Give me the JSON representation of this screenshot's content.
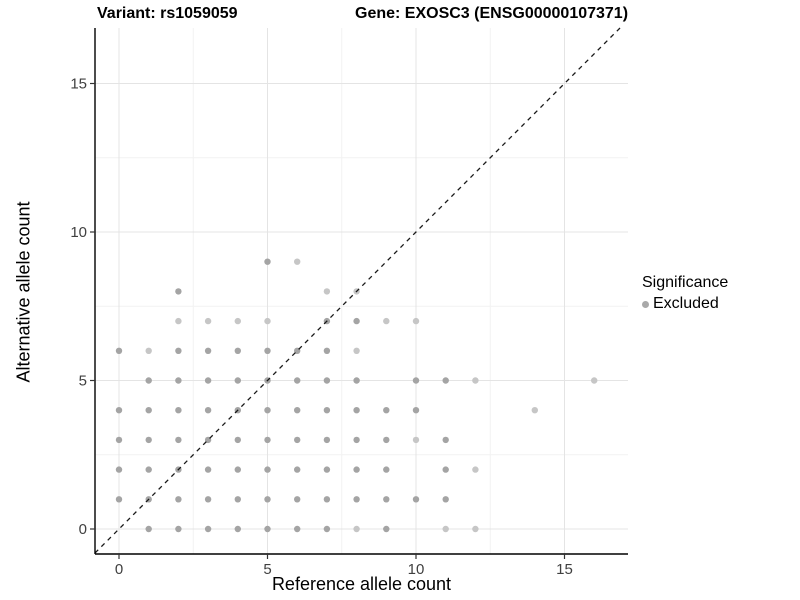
{
  "titles": {
    "variant": "Variant: rs1059059",
    "gene": "Gene: EXOSC3 (ENSG00000107371)"
  },
  "axes": {
    "x_label": "Reference allele count",
    "y_label": "Alternative allele count",
    "x_ticks": [
      "0",
      "5",
      "10",
      "15"
    ],
    "y_ticks": [
      "0",
      "5",
      "10",
      "15"
    ],
    "x_tick_values": [
      0,
      5,
      10,
      15
    ],
    "y_tick_values": [
      0,
      5,
      10,
      15
    ],
    "x_minor_values": [
      2.5,
      7.5,
      12.5
    ],
    "y_minor_values": [
      2.5,
      7.5,
      12.5
    ]
  },
  "legend": {
    "title": "Significance",
    "items": [
      {
        "label": "Excluded",
        "color": "#a9a9a9"
      }
    ]
  },
  "colors": {
    "grid_major": "#e4e4e4",
    "grid_minor": "#f2f2f2",
    "axis_line": "#000000",
    "tick_mark": "#333333",
    "tick_label": "#404040",
    "identity_line": "#1a1a1a",
    "dot_shades": {
      "m": "#a4a4a4",
      "l": "#c6c6c6"
    }
  },
  "chart_data": {
    "type": "scatter",
    "title": "Variant: rs1059059 — Gene: EXOSC3 (ENSG00000107371)",
    "xlabel": "Reference allele count",
    "ylabel": "Alternative allele count",
    "xlim": [
      -0.81,
      17.14
    ],
    "ylim": [
      -0.88,
      16.87
    ],
    "grid": "major+minor",
    "legend_position": "right",
    "identity_line": {
      "show": true,
      "style": "dashed",
      "slope": 1,
      "intercept": 0
    },
    "series_name": "Excluded",
    "point_note": "each point = [ref_allele_count, alt_allele_count, shade] ; shade m=overlapping/medium, l=light/single",
    "points": [
      [
        1,
        0,
        "m"
      ],
      [
        2,
        0,
        "m"
      ],
      [
        3,
        0,
        "m"
      ],
      [
        4,
        0,
        "m"
      ],
      [
        5,
        0,
        "m"
      ],
      [
        6,
        0,
        "m"
      ],
      [
        7,
        0,
        "m"
      ],
      [
        8,
        0,
        "l"
      ],
      [
        9,
        0,
        "m"
      ],
      [
        11,
        0,
        "l"
      ],
      [
        12,
        0,
        "l"
      ],
      [
        0,
        1,
        "m"
      ],
      [
        1,
        1,
        "m"
      ],
      [
        2,
        1,
        "m"
      ],
      [
        3,
        1,
        "m"
      ],
      [
        4,
        1,
        "m"
      ],
      [
        5,
        1,
        "m"
      ],
      [
        6,
        1,
        "m"
      ],
      [
        7,
        1,
        "m"
      ],
      [
        8,
        1,
        "m"
      ],
      [
        9,
        1,
        "m"
      ],
      [
        10,
        1,
        "m"
      ],
      [
        11,
        1,
        "m"
      ],
      [
        0,
        2,
        "m"
      ],
      [
        1,
        2,
        "m"
      ],
      [
        2,
        2,
        "m"
      ],
      [
        3,
        2,
        "m"
      ],
      [
        4,
        2,
        "m"
      ],
      [
        5,
        2,
        "m"
      ],
      [
        6,
        2,
        "m"
      ],
      [
        7,
        2,
        "m"
      ],
      [
        8,
        2,
        "m"
      ],
      [
        9,
        2,
        "m"
      ],
      [
        11,
        2,
        "m"
      ],
      [
        12,
        2,
        "l"
      ],
      [
        0,
        3,
        "m"
      ],
      [
        1,
        3,
        "m"
      ],
      [
        2,
        3,
        "m"
      ],
      [
        3,
        3,
        "m"
      ],
      [
        4,
        3,
        "m"
      ],
      [
        5,
        3,
        "m"
      ],
      [
        6,
        3,
        "m"
      ],
      [
        7,
        3,
        "m"
      ],
      [
        8,
        3,
        "m"
      ],
      [
        9,
        3,
        "m"
      ],
      [
        10,
        3,
        "l"
      ],
      [
        11,
        3,
        "m"
      ],
      [
        0,
        4,
        "m"
      ],
      [
        1,
        4,
        "m"
      ],
      [
        2,
        4,
        "m"
      ],
      [
        3,
        4,
        "m"
      ],
      [
        4,
        4,
        "m"
      ],
      [
        5,
        4,
        "m"
      ],
      [
        6,
        4,
        "m"
      ],
      [
        7,
        4,
        "m"
      ],
      [
        8,
        4,
        "m"
      ],
      [
        9,
        4,
        "m"
      ],
      [
        10,
        4,
        "m"
      ],
      [
        14,
        4,
        "l"
      ],
      [
        1,
        5,
        "m"
      ],
      [
        2,
        5,
        "m"
      ],
      [
        3,
        5,
        "m"
      ],
      [
        4,
        5,
        "m"
      ],
      [
        5,
        5,
        "m"
      ],
      [
        6,
        5,
        "m"
      ],
      [
        7,
        5,
        "m"
      ],
      [
        8,
        5,
        "m"
      ],
      [
        10,
        5,
        "m"
      ],
      [
        11,
        5,
        "m"
      ],
      [
        12,
        5,
        "l"
      ],
      [
        16,
        5,
        "l"
      ],
      [
        0,
        6,
        "m"
      ],
      [
        1,
        6,
        "l"
      ],
      [
        2,
        6,
        "m"
      ],
      [
        3,
        6,
        "m"
      ],
      [
        4,
        6,
        "m"
      ],
      [
        5,
        6,
        "m"
      ],
      [
        6,
        6,
        "m"
      ],
      [
        7,
        6,
        "m"
      ],
      [
        8,
        6,
        "l"
      ],
      [
        2,
        7,
        "l"
      ],
      [
        3,
        7,
        "l"
      ],
      [
        4,
        7,
        "l"
      ],
      [
        5,
        7,
        "l"
      ],
      [
        7,
        7,
        "m"
      ],
      [
        8,
        7,
        "m"
      ],
      [
        9,
        7,
        "l"
      ],
      [
        10,
        7,
        "l"
      ],
      [
        2,
        8,
        "m"
      ],
      [
        7,
        8,
        "l"
      ],
      [
        8,
        8,
        "l"
      ],
      [
        5,
        9,
        "m"
      ],
      [
        6,
        9,
        "l"
      ]
    ]
  }
}
